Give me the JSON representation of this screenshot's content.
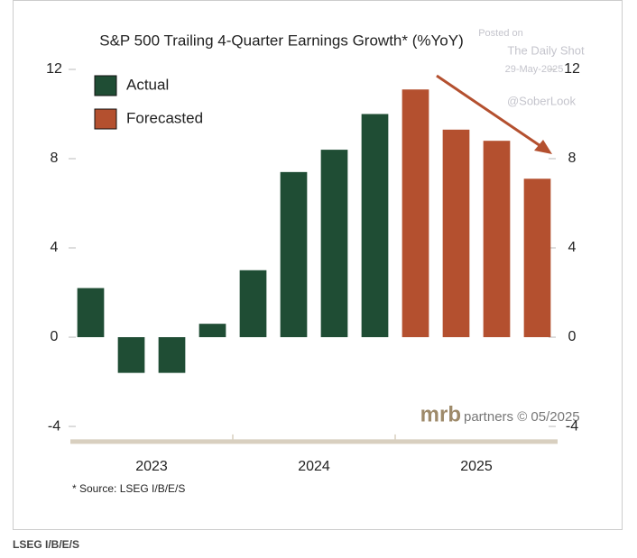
{
  "chart_data": {
    "type": "bar",
    "title": "S&P 500 Trailing 4-Quarter Earnings Growth* (%YoY)",
    "categories": [
      null,
      null,
      null,
      null,
      null,
      null,
      null,
      null,
      null,
      null,
      null,
      null
    ],
    "x_groups": [
      "2023",
      "2024",
      "2025"
    ],
    "series": [
      {
        "name": "Actual",
        "color": "#1f4d34",
        "values": [
          2.2,
          -1.6,
          -1.6,
          0.6,
          3.0,
          7.4,
          8.4,
          10.0,
          null,
          null,
          null,
          null
        ]
      },
      {
        "name": "Forecasted",
        "color": "#b4502f",
        "values": [
          null,
          null,
          null,
          null,
          null,
          null,
          null,
          null,
          11.1,
          9.3,
          8.8,
          7.1
        ]
      }
    ],
    "ylim": [
      -4.6,
      12.5
    ],
    "yticks": [
      -4,
      0,
      4,
      8,
      12
    ],
    "y2lim": [
      -4.6,
      12.5
    ],
    "y2ticks": [
      -4,
      0,
      4,
      8,
      12
    ],
    "legend": "upper left",
    "watermark": [
      "Posted on",
      "The Daily Shot",
      "29-May-2025",
      "@SoberLook"
    ],
    "brand": "mrb",
    "credit": "partners © 05/2025",
    "source_note": "* Source: LSEG I/B/E/S",
    "caption": "LSEG I/B/E/S"
  }
}
